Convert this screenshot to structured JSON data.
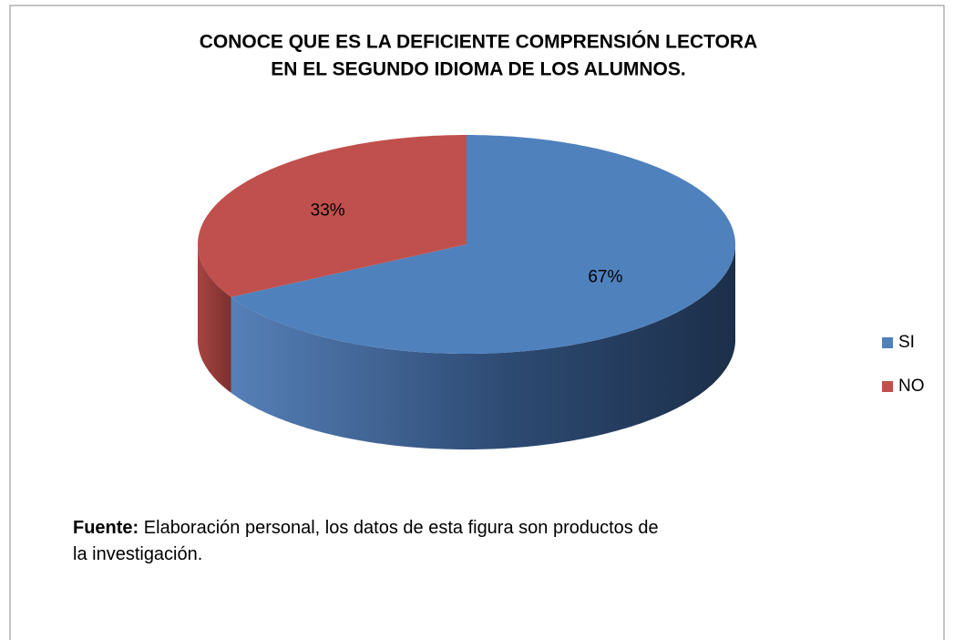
{
  "chart_data": {
    "type": "pie3d",
    "title": [
      "CONOCE QUE ES LA DEFICIENTE COMPRENSIÓN LECTORA",
      "EN EL SEGUNDO IDIOMA DE LOS ALUMNOS."
    ],
    "categories": [
      "SI",
      "NO"
    ],
    "values": [
      67,
      33
    ],
    "value_labels": [
      "67%",
      "33%"
    ],
    "colors": [
      "#4f81bd",
      "#c0504d"
    ],
    "legend": "right"
  },
  "source": {
    "label": "Fuente:",
    "text": "Elaboración personal, los datos de esta figura son productos de la investigación."
  }
}
